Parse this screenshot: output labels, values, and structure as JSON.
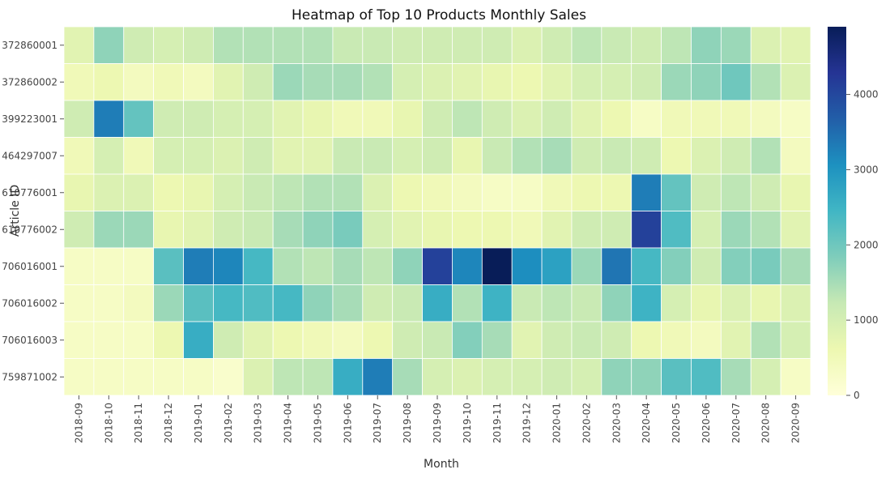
{
  "chart_data": {
    "type": "heatmap",
    "title": "Heatmap of Top 10 Products Monthly Sales",
    "xlabel": "Month",
    "ylabel": "Article ID",
    "x": [
      "2018-09",
      "2018-10",
      "2018-11",
      "2018-12",
      "2019-01",
      "2019-02",
      "2019-03",
      "2019-04",
      "2019-05",
      "2019-06",
      "2019-07",
      "2019-08",
      "2019-09",
      "2019-10",
      "2019-11",
      "2019-12",
      "2020-01",
      "2020-02",
      "2020-03",
      "2020-04",
      "2020-05",
      "2020-06",
      "2020-07",
      "2020-08",
      "2020-09"
    ],
    "y": [
      "372860001",
      "372860002",
      "399223001",
      "464297007",
      "610776001",
      "610776002",
      "706016001",
      "706016002",
      "706016003",
      "759871002"
    ],
    "values": [
      [
        800,
        1700,
        1100,
        1000,
        1100,
        1400,
        1400,
        1400,
        1400,
        1200,
        1200,
        1100,
        1100,
        1100,
        1100,
        900,
        1100,
        1300,
        1200,
        1100,
        1300,
        1700,
        1600,
        900,
        800
      ],
      [
        500,
        600,
        400,
        500,
        400,
        800,
        1100,
        1600,
        1500,
        1500,
        1400,
        1000,
        900,
        800,
        700,
        600,
        800,
        1000,
        1000,
        1100,
        1600,
        1700,
        2000,
        1400,
        900
      ],
      [
        1100,
        3300,
        2100,
        1100,
        1100,
        1000,
        1000,
        800,
        700,
        500,
        500,
        700,
        1100,
        1300,
        1100,
        900,
        1100,
        800,
        600,
        300,
        500,
        500,
        500,
        400,
        300
      ],
      [
        500,
        1000,
        500,
        1000,
        1000,
        900,
        1100,
        800,
        800,
        1200,
        1200,
        1000,
        1100,
        700,
        1200,
        1400,
        1500,
        1100,
        1200,
        1100,
        600,
        900,
        1100,
        1400,
        400
      ],
      [
        700,
        900,
        900,
        600,
        700,
        1000,
        1200,
        1300,
        1400,
        1400,
        900,
        600,
        500,
        400,
        300,
        300,
        500,
        600,
        600,
        3300,
        2100,
        1100,
        1300,
        1100,
        700
      ],
      [
        1100,
        1600,
        1600,
        700,
        800,
        1100,
        1200,
        1500,
        1700,
        1900,
        1000,
        800,
        700,
        600,
        600,
        500,
        800,
        1100,
        1100,
        4100,
        2300,
        1000,
        1600,
        1400,
        800
      ],
      [
        300,
        300,
        300,
        2200,
        3300,
        3200,
        2400,
        1400,
        1300,
        1500,
        1300,
        1700,
        4100,
        3200,
        4900,
        3100,
        2800,
        1600,
        3400,
        2400,
        1800,
        1100,
        1800,
        1900,
        1500
      ],
      [
        300,
        300,
        400,
        1600,
        2200,
        2400,
        2300,
        2400,
        1700,
        1500,
        1100,
        1200,
        2600,
        1400,
        2500,
        1200,
        1300,
        1200,
        1700,
        2500,
        1000,
        700,
        900,
        700,
        900
      ],
      [
        300,
        300,
        300,
        600,
        2600,
        1100,
        800,
        600,
        500,
        400,
        600,
        1100,
        1200,
        1800,
        1500,
        800,
        1100,
        1200,
        1100,
        600,
        500,
        400,
        800,
        1400,
        1000
      ],
      [
        300,
        300,
        300,
        300,
        300,
        200,
        900,
        1300,
        1300,
        2600,
        3300,
        1500,
        1000,
        900,
        1000,
        1000,
        1100,
        1000,
        1700,
        1700,
        2200,
        2300,
        1500,
        1000,
        300
      ]
    ],
    "zlim": [
      0,
      4900
    ],
    "colorbar_ticks": [
      0,
      1000,
      2000,
      3000,
      4000
    ],
    "colormap": "YlGnBu",
    "colormap_stops": [
      "#ffffd9",
      "#edf8b1",
      "#c7e9b4",
      "#7fcdbb",
      "#41b6c4",
      "#1d91c0",
      "#225ea8",
      "#253494",
      "#081d58"
    ],
    "grid": false
  }
}
